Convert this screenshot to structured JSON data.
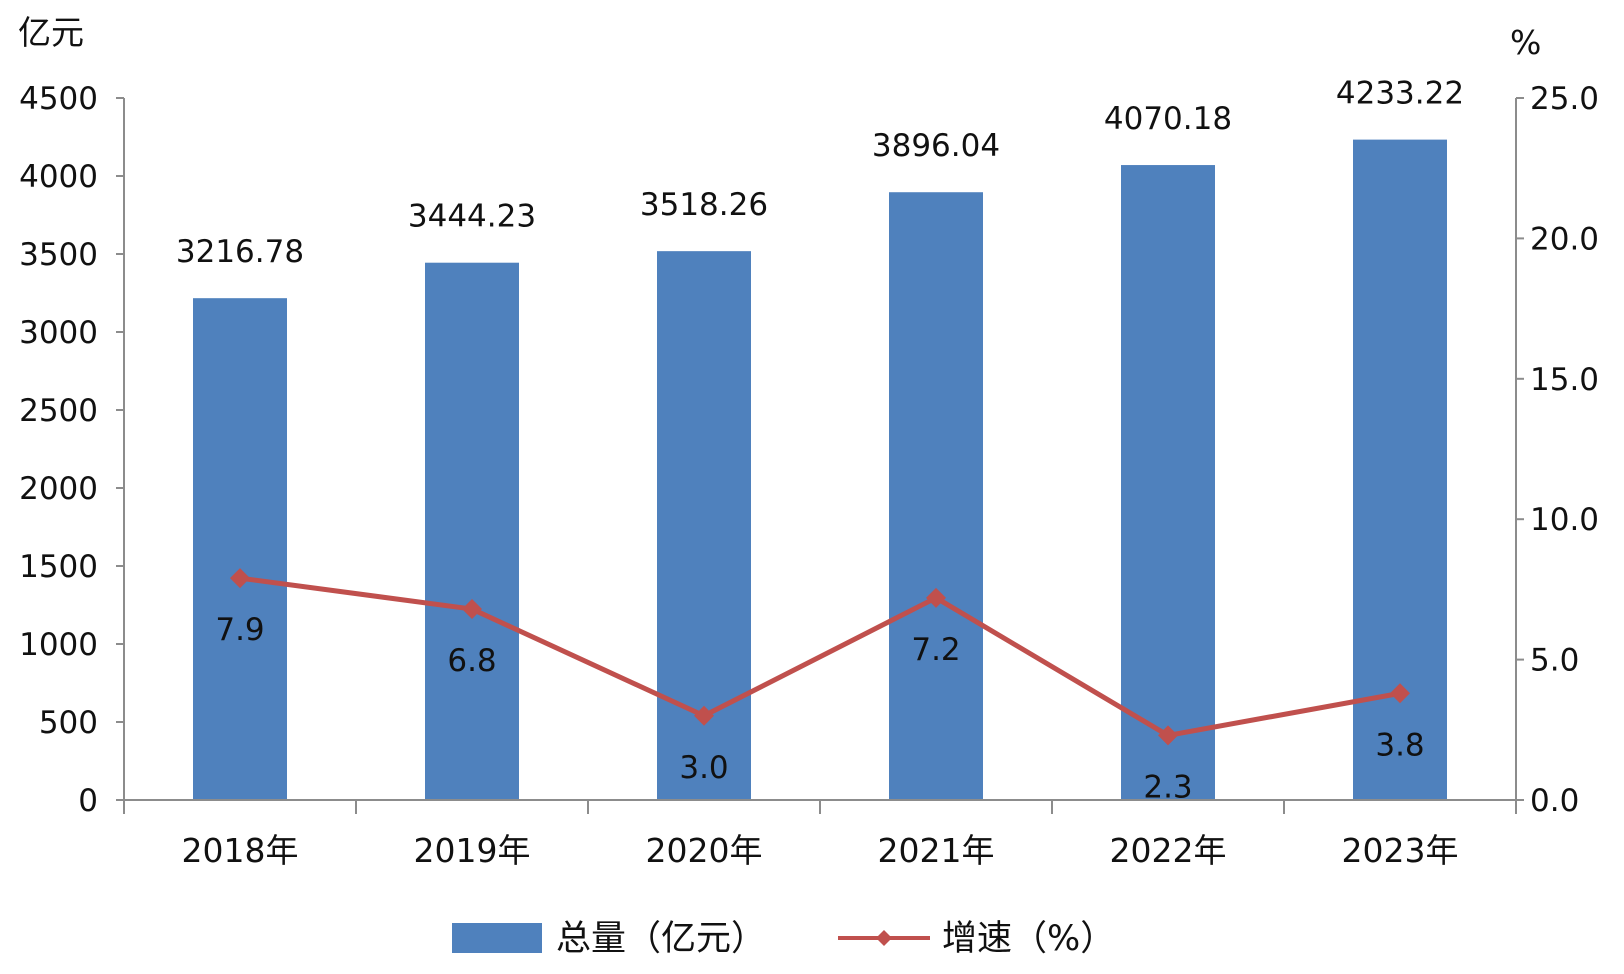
{
  "chart_data": {
    "type": "bar+line",
    "categories": [
      "2018年",
      "2019年",
      "2020年",
      "2021年",
      "2022年",
      "2023年"
    ],
    "series": [
      {
        "name": "总量（亿元）",
        "type": "bar",
        "axis": "left",
        "color": "#4f81bd",
        "values": [
          3216.78,
          3444.23,
          3518.26,
          3896.04,
          4070.18,
          4233.22
        ],
        "labels": [
          "3216.78",
          "3444.23",
          "3518.26",
          "3896.04",
          "4070.18",
          "4233.22"
        ]
      },
      {
        "name": "增速（%）",
        "type": "line",
        "axis": "right",
        "color": "#c0504d",
        "marker": "diamond",
        "values": [
          7.9,
          6.8,
          3.0,
          7.2,
          2.3,
          3.8
        ],
        "labels": [
          "7.9",
          "6.8",
          "3.0",
          "7.2",
          "2.3",
          "3.8"
        ]
      }
    ],
    "y_left": {
      "unit": "亿元",
      "min": 0,
      "max": 4500,
      "ticks": [
        0,
        500,
        1000,
        1500,
        2000,
        2500,
        3000,
        3500,
        4000,
        4500
      ],
      "tick_labels": [
        "0",
        "500",
        "1000",
        "1500",
        "2000",
        "2500",
        "3000",
        "3500",
        "4000",
        "4500"
      ]
    },
    "y_right": {
      "unit": "%",
      "min": 0,
      "max": 25,
      "ticks": [
        0,
        5,
        10,
        15,
        20,
        25
      ],
      "tick_labels": [
        "0.0",
        "5.0",
        "10.0",
        "15.0",
        "20.0",
        "25.0"
      ]
    },
    "grid": false,
    "legend_position": "bottom"
  }
}
